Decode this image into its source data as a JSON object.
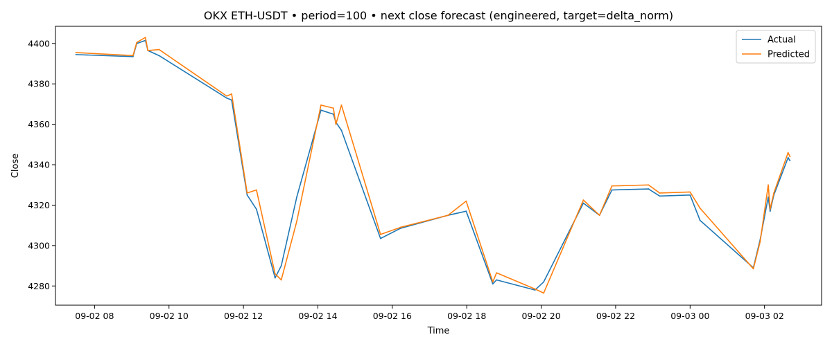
{
  "chart_data": {
    "type": "line",
    "title": "OKX ETH-USDT • period=100 • next close forecast (engineered, target=delta_norm)",
    "xlabel": "Time",
    "ylabel": "Close",
    "x_unit": "datetime",
    "xlim": [
      "09-02 06:57",
      "09-03 03:32"
    ],
    "ylim": [
      4270.5,
      4408.5
    ],
    "x_ticks": [
      "09-02 08",
      "09-02 10",
      "09-02 12",
      "09-02 14",
      "09-02 16",
      "09-02 18",
      "09-02 20",
      "09-02 22",
      "09-03 00",
      "09-03 02"
    ],
    "x_tick_values": [
      "09-02 08:00",
      "09-02 10:00",
      "09-02 12:00",
      "09-02 14:00",
      "09-02 16:00",
      "09-02 18:00",
      "09-02 20:00",
      "09-02 22:00",
      "09-03 00:00",
      "09-03 02:00"
    ],
    "y_ticks": [
      4280,
      4300,
      4320,
      4340,
      4360,
      4380,
      4400
    ],
    "grid": false,
    "legend_position": "top-right",
    "colors": {
      "Actual": "#1f77b4",
      "Predicted": "#ff7f0e"
    },
    "x": [
      "09-02 07:30",
      "09-02 09:02",
      "09-02 09:08",
      "09-02 09:22",
      "09-02 09:26",
      "09-02 09:44",
      "09-02 11:33",
      "09-02 11:41",
      "09-02 12:06",
      "09-02 12:21",
      "09-02 12:51",
      "09-02 13:01",
      "09-02 13:26",
      "09-02 14:05",
      "09-02 14:25",
      "09-02 14:29",
      "09-02 14:38",
      "09-02 15:41",
      "09-02 16:13",
      "09-02 17:30",
      "09-02 17:59",
      "09-02 18:42",
      "09-02 18:48",
      "09-02 19:50",
      "09-02 20:04",
      "09-02 21:08",
      "09-02 21:34",
      "09-02 21:54",
      "09-02 22:53",
      "09-02 23:11",
      "09-03 00:00",
      "09-03 00:16",
      "09-03 01:42",
      "09-03 01:53",
      "09-03 02:06",
      "09-03 02:09",
      "09-03 02:15",
      "09-03 02:38",
      "09-03 02:41"
    ],
    "series": [
      {
        "name": "Actual",
        "values": [
          4394.5,
          4393.5,
          4400,
          4401.5,
          4396.5,
          4394,
          4373,
          4372,
          4325,
          4318,
          4284,
          4290,
          4324,
          4367,
          4365,
          4361,
          4357,
          4303.5,
          4308.5,
          4315,
          4317,
          4281,
          4283,
          4278,
          4282,
          4321,
          4315,
          4327.5,
          4328,
          4324.5,
          4325,
          4312.5,
          4289,
          4303,
          4324,
          4317,
          4325,
          4343.5,
          4342
        ]
      },
      {
        "name": "Predicted",
        "values": [
          4395.5,
          4394,
          4400.5,
          4403,
          4396.5,
          4397,
          4374,
          4375,
          4326,
          4327.5,
          4286,
          4283,
          4312,
          4369.5,
          4368,
          4360,
          4369.5,
          4305.5,
          4309,
          4315,
          4322,
          4282,
          4286.5,
          4278.5,
          4276.5,
          4322.5,
          4315,
          4329.5,
          4330,
          4326,
          4326.5,
          4318.5,
          4288.5,
          4302,
          4330,
          4318,
          4326,
          4346,
          4344
        ]
      }
    ]
  }
}
